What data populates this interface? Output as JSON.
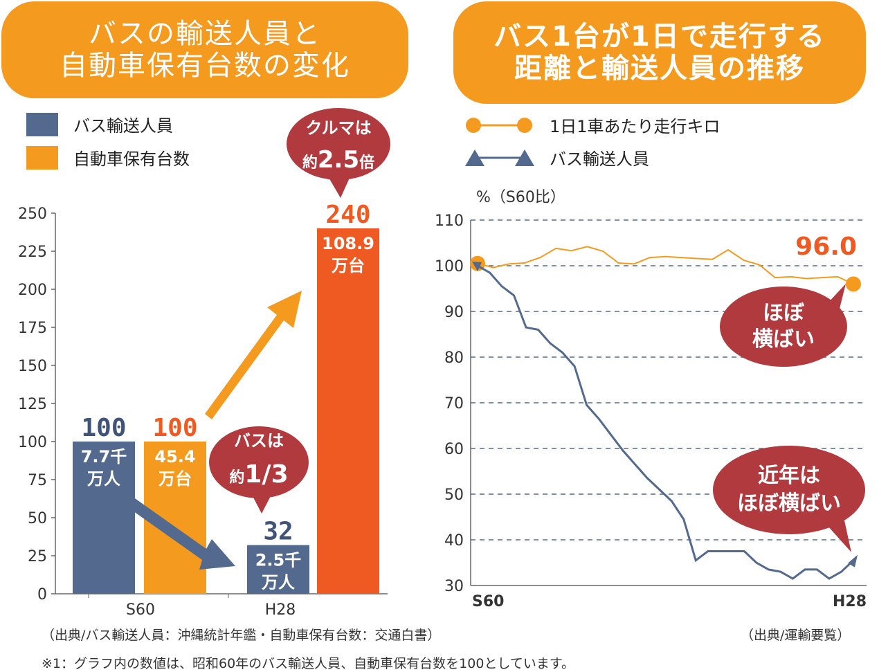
{
  "left": {
    "title": "バスの輸送人員と\n自動車保有台数の変化",
    "legend": [
      {
        "label": "バス輸送人員",
        "color": "#536a8e"
      },
      {
        "label": "自動車保有台数",
        "color": "#f39a1f"
      }
    ]
  },
  "right": {
    "title": "バス1台が1日で走行する\n距離と輸送人員の推移",
    "legend": [
      {
        "label": "1日1車あたり走行キロ",
        "color": "#f39a1f",
        "marker": "circle"
      },
      {
        "label": "バス輸送人員",
        "color": "#536a8e",
        "marker": "triangle"
      }
    ]
  },
  "chart_data": [
    {
      "type": "bar",
      "categories": [
        "S60",
        "H28"
      ],
      "ylim": [
        0,
        250
      ],
      "yticks": [
        0,
        25,
        50,
        75,
        100,
        125,
        150,
        175,
        200,
        225,
        250
      ],
      "series": [
        {
          "name": "バス輸送人員",
          "color": "#536a8e",
          "values": [
            100,
            32
          ],
          "value_labels": [
            "100",
            "32"
          ],
          "inner_labels": [
            "7.7千\n万人",
            "2.5千\n万人"
          ]
        },
        {
          "name": "自動車保有台数",
          "color_s60": "#f39a1f",
          "color": "#ee5a22",
          "values": [
            100,
            240
          ],
          "value_labels": [
            "100",
            "240"
          ],
          "inner_labels": [
            "45.4\n万台",
            "108.9\n万台"
          ]
        }
      ],
      "callouts": [
        {
          "line1": "クルマは",
          "prefix": "約",
          "big": "2.5",
          "suffix": "倍"
        },
        {
          "line1": "バスは",
          "prefix": "約",
          "big": "1/3",
          "suffix": ""
        }
      ],
      "value_label_colors": {
        "bus": "#3f5478",
        "car_s60": "#ee5a22",
        "car_h28": "#ee5a22"
      },
      "callout_color": "#b13a3f"
    },
    {
      "type": "line",
      "ylabel": "%（S60比）",
      "ylim": [
        30,
        110
      ],
      "yticks": [
        30,
        40,
        50,
        60,
        70,
        80,
        90,
        100,
        110
      ],
      "x_labels": [
        "S60",
        "H28"
      ],
      "grid": true,
      "series": [
        {
          "name": "1日1車あたり走行キロ",
          "color": "#f39a1f",
          "values": [
            100.5,
            99.6,
            100.4,
            100.6,
            101.8,
            103.8,
            103.3,
            104.2,
            103.2,
            100.6,
            100.4,
            101.8,
            102.0,
            101.8,
            101.6,
            101.4,
            103.5,
            101.2,
            100.2,
            97.4,
            97.6,
            97.2,
            97.4,
            97.6,
            96.0
          ]
        },
        {
          "name": "バス輸送人員",
          "color": "#536a8e",
          "values": [
            100,
            98.5,
            95.5,
            93.5,
            86.5,
            86,
            83,
            81,
            78,
            69.5,
            66.5,
            63,
            59.5,
            56.5,
            53.5,
            51,
            48.5,
            44.5,
            35.5,
            37.5,
            37.5,
            37.5,
            37.5,
            35,
            33.5,
            33,
            31.5,
            33.5,
            33.5,
            31.5,
            33,
            35.5
          ]
        }
      ],
      "end_value_label": "96.0",
      "callouts": [
        "ほぼ\n横ばい",
        "近年は\nほぼ横ばい"
      ]
    }
  ],
  "footer": {
    "source_left": "（出典/バス輸送人員：沖縄統計年鑑・自動車保有台数：交通白書）",
    "source_right": "（出典/運輸要覧）",
    "note": "※1：グラフ内の数値は、昭和60年のバス輸送人員、自動車保有台数を100としています。"
  }
}
